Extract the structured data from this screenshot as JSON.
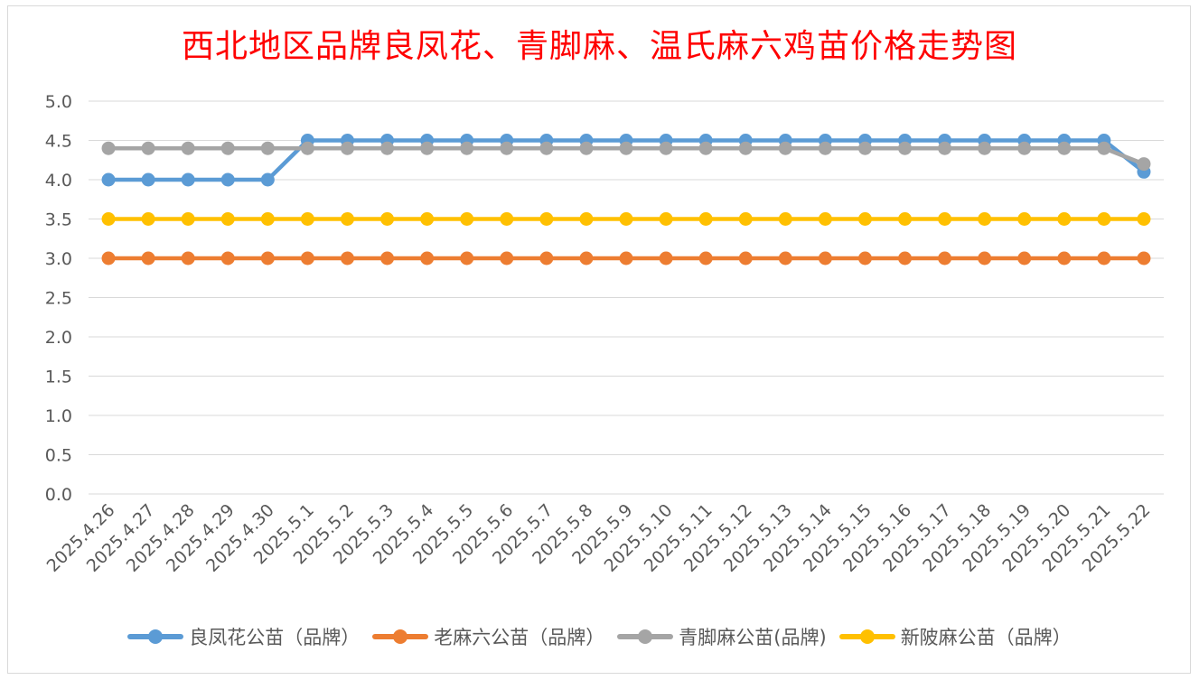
{
  "chart_data": {
    "type": "line",
    "title": "西北地区品牌良凤花、青脚麻、温氏麻六鸡苗价格走势图",
    "xlabel": "",
    "ylabel": "",
    "ylim": [
      0,
      5
    ],
    "yticks": [
      "0.0",
      "0.5",
      "1.0",
      "1.5",
      "2.0",
      "2.5",
      "3.0",
      "3.5",
      "4.0",
      "4.5",
      "5.0"
    ],
    "grid": true,
    "legend_position": "bottom",
    "x": [
      "2025.4.26",
      "2025.4.27",
      "2025.4.28",
      "2025.4.29",
      "2025.4.30",
      "2025.5.1",
      "2025.5.2",
      "2025.5.3",
      "2025.5.4",
      "2025.5.5",
      "2025.5.6",
      "2025.5.7",
      "2025.5.8",
      "2025.5.9",
      "2025.5.10",
      "2025.5.11",
      "2025.5.12",
      "2025.5.13",
      "2025.5.14",
      "2025.5.15",
      "2025.5.16",
      "2025.5.17",
      "2025.5.18",
      "2025.5.19",
      "2025.5.20",
      "2025.5.21",
      "2025.5.22"
    ],
    "series": [
      {
        "name": "良凤花公苗（品牌）",
        "color": "#5b9bd5",
        "values": [
          4.0,
          4.0,
          4.0,
          4.0,
          4.0,
          4.5,
          4.5,
          4.5,
          4.5,
          4.5,
          4.5,
          4.5,
          4.5,
          4.5,
          4.5,
          4.5,
          4.5,
          4.5,
          4.5,
          4.5,
          4.5,
          4.5,
          4.5,
          4.5,
          4.5,
          4.5,
          4.1
        ]
      },
      {
        "name": "老麻六公苗（品牌）",
        "color": "#ed7d31",
        "values": [
          3.0,
          3.0,
          3.0,
          3.0,
          3.0,
          3.0,
          3.0,
          3.0,
          3.0,
          3.0,
          3.0,
          3.0,
          3.0,
          3.0,
          3.0,
          3.0,
          3.0,
          3.0,
          3.0,
          3.0,
          3.0,
          3.0,
          3.0,
          3.0,
          3.0,
          3.0,
          3.0
        ]
      },
      {
        "name": "青脚麻公苗(品牌)",
        "color": "#a5a5a5",
        "values": [
          4.4,
          4.4,
          4.4,
          4.4,
          4.4,
          4.4,
          4.4,
          4.4,
          4.4,
          4.4,
          4.4,
          4.4,
          4.4,
          4.4,
          4.4,
          4.4,
          4.4,
          4.4,
          4.4,
          4.4,
          4.4,
          4.4,
          4.4,
          4.4,
          4.4,
          4.4,
          4.2
        ]
      },
      {
        "name": "新陂麻公苗（品牌）",
        "color": "#ffc000",
        "values": [
          3.5,
          3.5,
          3.5,
          3.5,
          3.5,
          3.5,
          3.5,
          3.5,
          3.5,
          3.5,
          3.5,
          3.5,
          3.5,
          3.5,
          3.5,
          3.5,
          3.5,
          3.5,
          3.5,
          3.5,
          3.5,
          3.5,
          3.5,
          3.5,
          3.5,
          3.5,
          3.5
        ]
      }
    ]
  }
}
